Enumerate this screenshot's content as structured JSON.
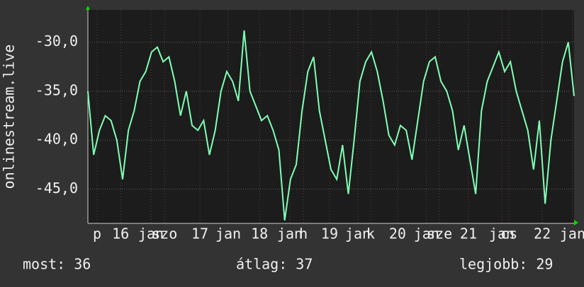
{
  "chart_data": {
    "type": "line",
    "y_label": "onlinestream.live",
    "xlim": [
      0,
      168
    ],
    "ylim": [
      -48.5,
      -26.7
    ],
    "yticks": [
      {
        "value": -30,
        "label": "-30,0"
      },
      {
        "value": -35,
        "label": "-35,0"
      },
      {
        "value": -40,
        "label": "-40,0"
      },
      {
        "value": -45,
        "label": "-45,0"
      }
    ],
    "xticks": [
      {
        "value": 3.2,
        "label": "p"
      },
      {
        "value": 11.3,
        "label": "16"
      },
      {
        "value": 21.8,
        "label": "jan"
      },
      {
        "value": 26.5,
        "label": "szo"
      },
      {
        "value": 38.7,
        "label": "17"
      },
      {
        "value": 48.5,
        "label": "jan"
      },
      {
        "value": 59.3,
        "label": "18"
      },
      {
        "value": 69.8,
        "label": "jan"
      },
      {
        "value": 74.5,
        "label": "h"
      },
      {
        "value": 83.5,
        "label": "19"
      },
      {
        "value": 93.3,
        "label": "jan"
      },
      {
        "value": 97.7,
        "label": "k"
      },
      {
        "value": 107,
        "label": "20"
      },
      {
        "value": 117,
        "label": "jan"
      },
      {
        "value": 121.5,
        "label": "sze"
      },
      {
        "value": 131.5,
        "label": "21"
      },
      {
        "value": 143,
        "label": "jan"
      },
      {
        "value": 145.5,
        "label": "cs"
      },
      {
        "value": 157,
        "label": "22"
      },
      {
        "value": 167.5,
        "label": "jan"
      }
    ],
    "grid": true,
    "series": [
      {
        "color": "#80ffb4",
        "x": [
          0,
          2,
          4,
          6,
          8,
          10,
          12,
          14,
          16,
          18,
          20,
          22,
          24,
          26,
          28,
          30,
          32,
          34,
          36,
          38,
          40,
          42,
          44,
          46,
          48,
          50,
          52,
          54,
          56,
          58,
          60,
          62,
          64,
          66,
          68,
          70,
          72,
          74,
          76,
          78,
          80,
          82,
          84,
          86,
          88,
          90,
          92,
          94,
          96,
          98,
          100,
          102,
          104,
          106,
          108,
          110,
          112,
          114,
          116,
          118,
          120,
          122,
          124,
          126,
          128,
          130,
          132,
          134,
          136,
          138,
          140,
          142,
          144,
          146,
          148,
          150,
          152,
          154,
          156,
          158,
          160,
          162,
          164,
          166,
          168
        ],
        "values": [
          -35,
          -41.5,
          -39,
          -37.5,
          -38,
          -40,
          -44,
          -39,
          -37,
          -34,
          -33,
          -31,
          -30.5,
          -32,
          -31.5,
          -34,
          -37.5,
          -35,
          -38.5,
          -39,
          -38,
          -41.5,
          -39,
          -35,
          -33,
          -34,
          -36,
          -28.8,
          -35,
          -36.5,
          -38,
          -37.5,
          -39,
          -41,
          -48.2,
          -44,
          -42.5,
          -37,
          -33,
          -31.5,
          -37,
          -40,
          -43,
          -44,
          -40.5,
          -45.5,
          -40,
          -34,
          -32,
          -31,
          -33,
          -36,
          -39.5,
          -40.5,
          -38.5,
          -39,
          -42,
          -38,
          -34,
          -32,
          -31.5,
          -34,
          -35,
          -37,
          -41,
          -38.5,
          -42,
          -45.5,
          -37,
          -34,
          -32.5,
          -31,
          -33,
          -32,
          -35,
          -37,
          -39,
          -43,
          -38,
          -46.5,
          -40,
          -36,
          -32,
          -30,
          -35.5
        ]
      }
    ],
    "stats": [
      "most: 36",
      "átlag: 37",
      "legjobb: 29"
    ]
  }
}
